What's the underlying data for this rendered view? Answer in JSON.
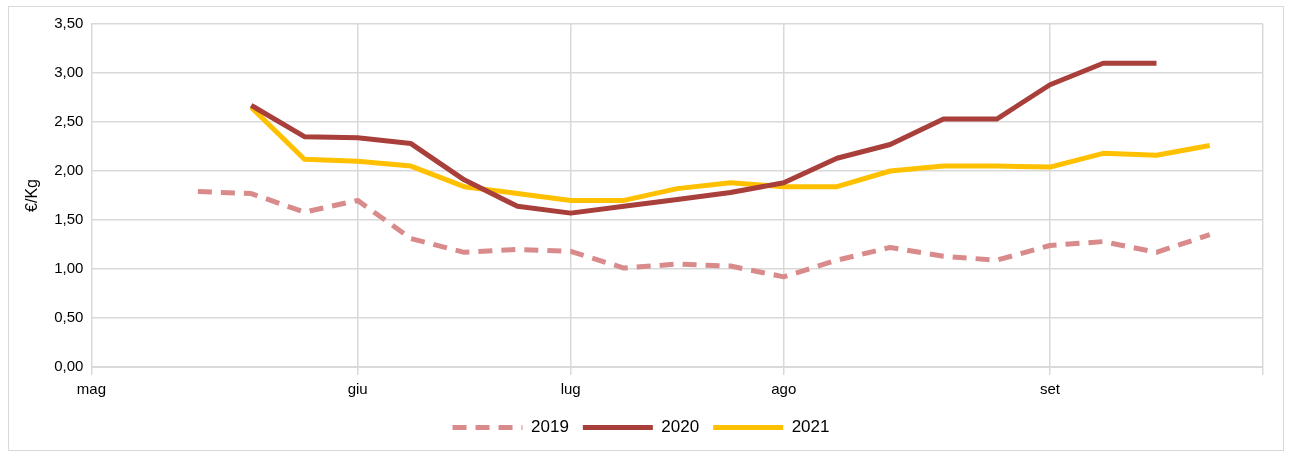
{
  "chart_data": {
    "type": "line",
    "ylabel": "€/Kg",
    "categories": [
      "mag",
      null,
      null,
      null,
      null,
      "giu",
      null,
      null,
      null,
      "lug",
      null,
      null,
      null,
      "ago",
      null,
      null,
      null,
      null,
      "set",
      null,
      null,
      null,
      null
    ],
    "ylim": [
      0,
      3.5
    ],
    "yticks": [
      {
        "value": 0,
        "label": "0,00"
      },
      {
        "value": 0.5,
        "label": "0,50"
      },
      {
        "value": 1,
        "label": "1,00"
      },
      {
        "value": 1.5,
        "label": "1,50"
      },
      {
        "value": 2,
        "label": "2,00"
      },
      {
        "value": 2.5,
        "label": "2,50"
      },
      {
        "value": 3,
        "label": "3,00"
      },
      {
        "value": 3.5,
        "label": "3,50"
      }
    ],
    "grid": true,
    "legend": "bottom",
    "marker": "none",
    "series": [
      {
        "name": "2019",
        "color": "#d98a8a",
        "line_style": "dashed",
        "values": [
          null,
          null,
          1.79,
          1.77,
          1.58,
          1.7,
          1.31,
          1.17,
          1.2,
          1.18,
          1.01,
          1.05,
          1.03,
          0.92,
          1.09,
          1.22,
          1.13,
          1.09,
          1.24,
          1.28,
          1.17,
          1.35,
          null
        ]
      },
      {
        "name": "2020",
        "color": "#a93f3a",
        "line_style": "solid",
        "values": [
          null,
          null,
          null,
          2.67,
          2.35,
          2.34,
          2.28,
          1.91,
          1.64,
          1.57,
          1.64,
          1.71,
          1.78,
          1.88,
          2.13,
          2.27,
          2.53,
          2.53,
          2.88,
          3.1,
          3.1,
          null,
          null
        ]
      },
      {
        "name": "2021",
        "color": "#ffc000",
        "line_style": "solid",
        "values": [
          null,
          null,
          null,
          2.65,
          2.12,
          2.1,
          2.05,
          1.84,
          1.77,
          1.7,
          1.7,
          1.82,
          1.88,
          1.84,
          1.84,
          2.0,
          2.05,
          2.05,
          2.04,
          2.18,
          2.16,
          2.26,
          null
        ]
      }
    ]
  }
}
